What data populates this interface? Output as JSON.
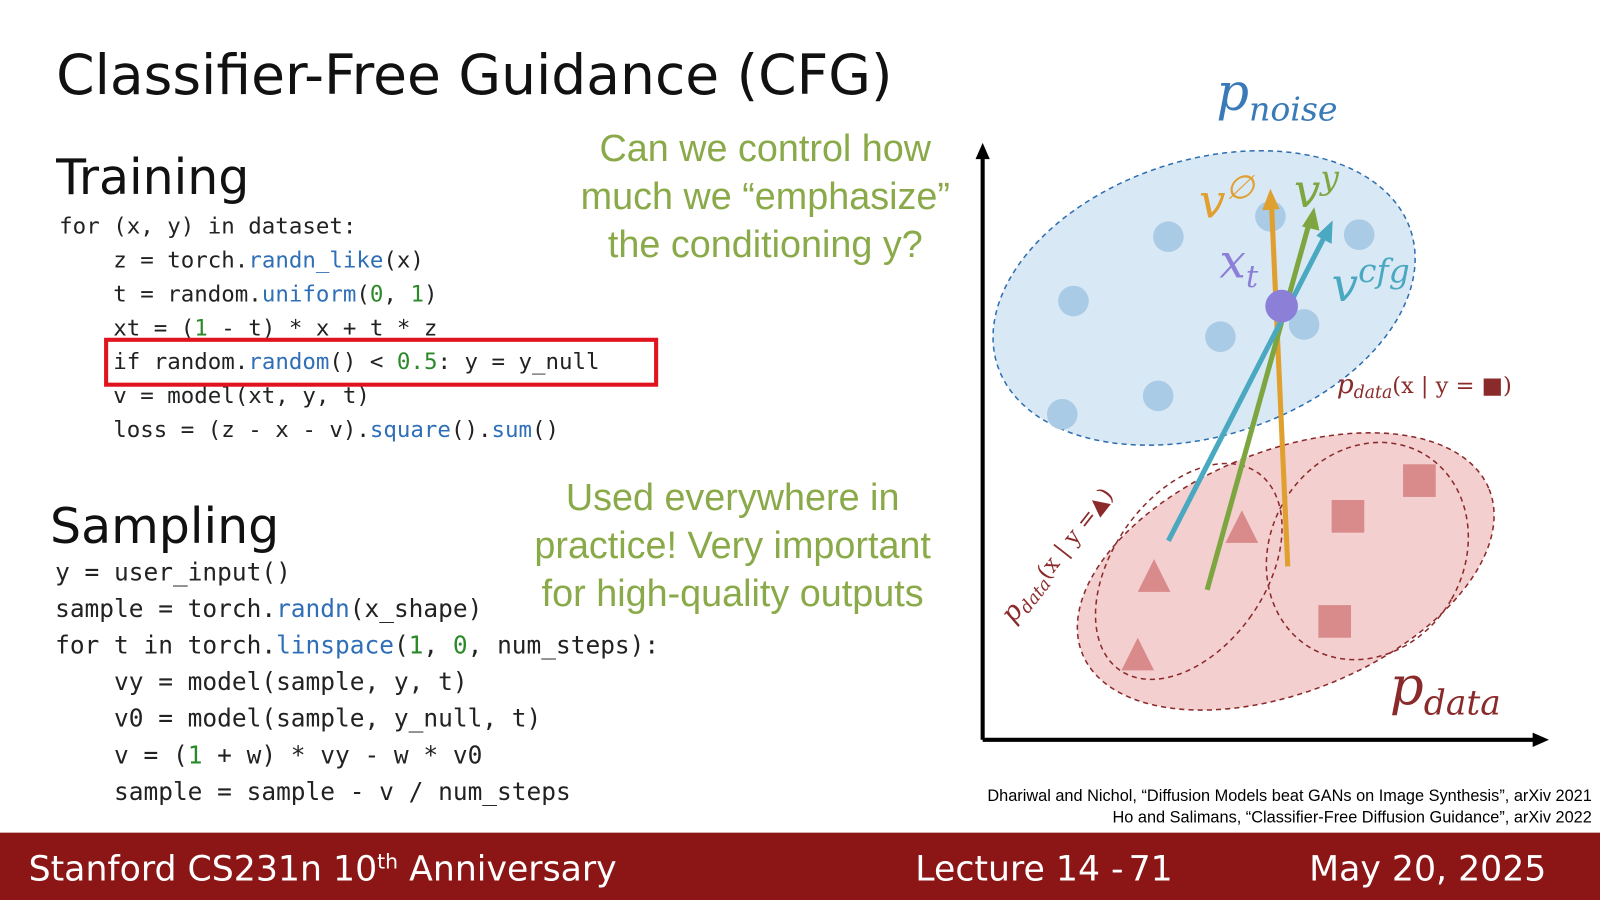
{
  "title": "Classifier-Free Guidance (CFG)",
  "training": {
    "heading": "Training",
    "code": [
      "for (x, y) in dataset:",
      "    z = torch.randn_like(x)",
      "    t = random.uniform(0, 1)",
      "    xt = (1 - t) * x + t * z",
      "    if random.random() < 0.5: y = y_null",
      "    v = model(xt, y, t)",
      "    loss = (z - x - v).square().sum()"
    ]
  },
  "sampling": {
    "heading": "Sampling",
    "code": [
      "y = user_input()",
      "sample = torch.randn(x_shape)",
      "for t in torch.linspace(1, 0, num_steps):",
      "    vy = model(sample, y, t)",
      "    v0 = model(sample, y_null, t)",
      "    v = (1 + w) * vy - w * v0",
      "    sample = sample - v / num_steps"
    ]
  },
  "callouts": [
    [
      "Can we control how",
      "much we “emphasize”",
      "the conditioning y?"
    ],
    [
      "Used everywhere in",
      "practice! Very important",
      "for high-quality outputs"
    ]
  ],
  "diagram": {
    "p_noise": {
      "base": "p",
      "sub": "noise"
    },
    "v_null": {
      "base": "v",
      "sup": "∅"
    },
    "v_y": {
      "base": "v",
      "sup": "y"
    },
    "x_t": {
      "base": "x",
      "sub": "t"
    },
    "v_cfg": {
      "base": "v",
      "sup": "cfg"
    },
    "p_square": {
      "base": "p",
      "sub": "data",
      "rest": "(x | y = ■)"
    },
    "p_triangle": {
      "base": "p",
      "sub": "data",
      "rest": "(x | y =▲)"
    },
    "p_data": {
      "base": "p",
      "sub": "data"
    }
  },
  "references": [
    "Dhariwal and Nichol, “Diffusion Models beat GANs on Image Synthesis”, arXiv 2021",
    "Ho and Salimans, “Classifier-Free Diffusion Guidance”, arXiv 2022"
  ],
  "footer": {
    "course": "Stanford CS231n 10",
    "course_sup": "th",
    "course_rest": " Anniversary",
    "lecture": "Lecture 14 -",
    "slide": "71",
    "date": "May 20, 2025"
  }
}
